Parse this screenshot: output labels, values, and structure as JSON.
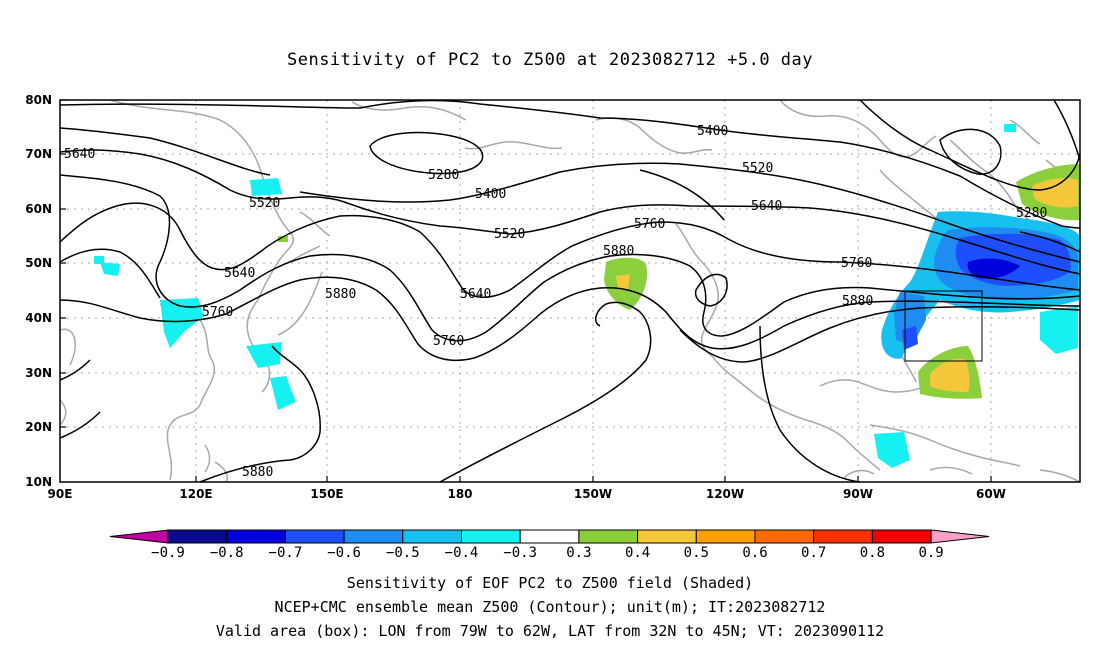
{
  "title": "Sensitivity of PC2 to Z500 at 2023082712 +5.0 day",
  "map": {
    "lat_ticks": [
      "80N",
      "70N",
      "60N",
      "50N",
      "40N",
      "30N",
      "20N",
      "10N"
    ],
    "lon_ticks": [
      "90E",
      "120E",
      "150E",
      "180",
      "150W",
      "120W",
      "90W",
      "60W"
    ],
    "contour_labels": [
      "5640",
      "5280",
      "5400",
      "5400",
      "5520",
      "5520",
      "5640",
      "5520",
      "5760",
      "5640",
      "5880",
      "5880",
      "5640",
      "5760",
      "5760",
      "5760",
      "5880",
      "5880",
      "5280"
    ]
  },
  "colorbar": {
    "labels": [
      "-0.9",
      "-0.8",
      "-0.7",
      "-0.6",
      "-0.5",
      "-0.4",
      "-0.3",
      "0.3",
      "0.4",
      "0.5",
      "0.6",
      "0.7",
      "0.8",
      "0.9"
    ],
    "colors": [
      "#c000a0",
      "#0a0a8f",
      "#0000dd",
      "#1e4fff",
      "#1e8cf0",
      "#18c0f0",
      "#16f0f0",
      "#ffffff",
      "#8ccf3c",
      "#f5c73a",
      "#ff9f00",
      "#ff6a00",
      "#ff3000",
      "#f00000",
      "#f8a0c8"
    ]
  },
  "captions": {
    "line1": "Sensitivity of EOF PC2 to Z500 field (Shaded)",
    "line2": "NCEP+CMC ensemble mean Z500 (Contour); unit(m); IT:2023082712",
    "line3": "Valid area (box): LON from 79W to 62W, LAT from 32N to 45N; VT: 2023090112"
  }
}
